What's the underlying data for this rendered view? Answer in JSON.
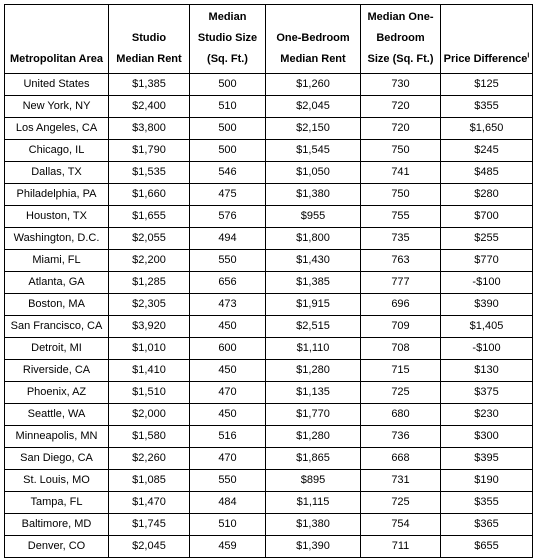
{
  "table": {
    "headers": [
      {
        "lines": [
          "Metropolitan Area"
        ]
      },
      {
        "lines": [
          "Studio",
          "Median Rent"
        ]
      },
      {
        "lines": [
          "Median",
          "Studio Size",
          "(Sq. Ft.)"
        ]
      },
      {
        "lines": [
          "One-Bedroom",
          "Median Rent"
        ]
      },
      {
        "lines": [
          "Median One-",
          "Bedroom",
          "Size (Sq. Ft.)"
        ]
      },
      {
        "lines": [
          "Price Difference"
        ],
        "footnote": "I"
      }
    ],
    "rows": [
      [
        "United States",
        "$1,385",
        "500",
        "$1,260",
        "730",
        "$125"
      ],
      [
        "New York, NY",
        "$2,400",
        "510",
        "$2,045",
        "720",
        "$355"
      ],
      [
        "Los Angeles, CA",
        "$3,800",
        "500",
        "$2,150",
        "720",
        "$1,650"
      ],
      [
        "Chicago, IL",
        "$1,790",
        "500",
        "$1,545",
        "750",
        "$245"
      ],
      [
        "Dallas, TX",
        "$1,535",
        "546",
        "$1,050",
        "741",
        "$485"
      ],
      [
        "Philadelphia, PA",
        "$1,660",
        "475",
        "$1,380",
        "750",
        "$280"
      ],
      [
        "Houston, TX",
        "$1,655",
        "576",
        "$955",
        "755",
        "$700"
      ],
      [
        "Washington, D.C.",
        "$2,055",
        "494",
        "$1,800",
        "735",
        "$255"
      ],
      [
        "Miami, FL",
        "$2,200",
        "550",
        "$1,430",
        "763",
        "$770"
      ],
      [
        "Atlanta, GA",
        "$1,285",
        "656",
        "$1,385",
        "777",
        "-$100"
      ],
      [
        "Boston, MA",
        "$2,305",
        "473",
        "$1,915",
        "696",
        "$390"
      ],
      [
        "San Francisco, CA",
        "$3,920",
        "450",
        "$2,515",
        "709",
        "$1,405"
      ],
      [
        "Detroit, MI",
        "$1,010",
        "600",
        "$1,110",
        "708",
        "-$100"
      ],
      [
        "Riverside, CA",
        "$1,410",
        "450",
        "$1,280",
        "715",
        "$130"
      ],
      [
        "Phoenix, AZ",
        "$1,510",
        "470",
        "$1,135",
        "725",
        "$375"
      ],
      [
        "Seattle, WA",
        "$2,000",
        "450",
        "$1,770",
        "680",
        "$230"
      ],
      [
        "Minneapolis, MN",
        "$1,580",
        "516",
        "$1,280",
        "736",
        "$300"
      ],
      [
        "San Diego, CA",
        "$2,260",
        "470",
        "$1,865",
        "668",
        "$395"
      ],
      [
        "St. Louis, MO",
        "$1,085",
        "550",
        "$895",
        "731",
        "$190"
      ],
      [
        "Tampa, FL",
        "$1,470",
        "484",
        "$1,115",
        "725",
        "$355"
      ],
      [
        "Baltimore, MD",
        "$1,745",
        "510",
        "$1,380",
        "754",
        "$365"
      ],
      [
        "Denver, CO",
        "$2,045",
        "459",
        "$1,390",
        "711",
        "$655"
      ]
    ]
  }
}
